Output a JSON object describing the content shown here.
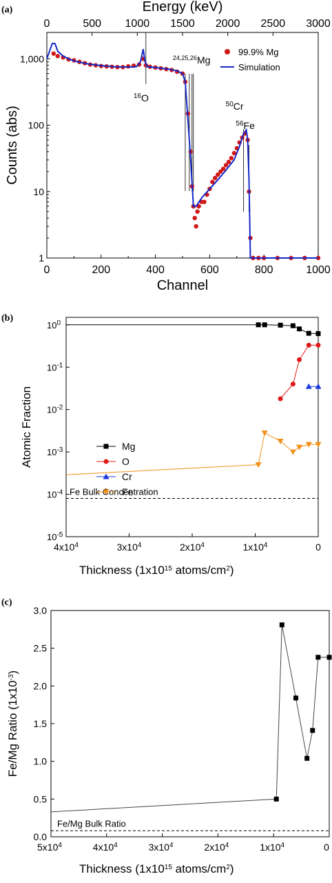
{
  "panels": {
    "a": "(a)",
    "b": "(b)",
    "c": "(c)"
  },
  "chart_data": [
    {
      "type": "scatter",
      "panel_label": "(a)",
      "xlabel": "Channel",
      "x2label": "Energy (keV)",
      "ylabel": "Counts (abs)",
      "xlim": [
        0,
        1000
      ],
      "x2lim": [
        0,
        3000
      ],
      "ylim": [
        1,
        2500
      ],
      "yscale": "log",
      "xticks": [
        0,
        200,
        400,
        600,
        800,
        1000
      ],
      "x2ticks": [
        0,
        500,
        1000,
        1500,
        2000,
        2500,
        3000
      ],
      "yticks": [
        1,
        10,
        100,
        1000
      ],
      "yticklabels": [
        "1",
        "10",
        "100",
        "1,000"
      ],
      "legend_position": "top-right",
      "series": [
        {
          "name": "99.9% Mg",
          "kind": "markers",
          "color": "#d01818",
          "x": [
            25,
            40,
            60,
            80,
            100,
            120,
            140,
            160,
            180,
            200,
            220,
            240,
            260,
            280,
            300,
            320,
            340,
            355,
            365,
            380,
            400,
            420,
            440,
            460,
            480,
            500,
            510,
            520,
            530,
            535,
            540,
            545,
            550,
            555,
            560,
            570,
            580,
            590,
            600,
            610,
            620,
            630,
            640,
            650,
            660,
            670,
            680,
            690,
            700,
            710,
            720,
            730,
            740,
            745,
            750,
            760,
            780,
            800,
            850,
            900,
            950,
            1000
          ],
          "y": [
            1200,
            1100,
            1050,
            980,
            950,
            900,
            860,
            820,
            800,
            780,
            770,
            760,
            750,
            750,
            770,
            790,
            820,
            1000,
            800,
            760,
            740,
            720,
            700,
            680,
            640,
            600,
            450,
            150,
            40,
            12,
            6,
            4,
            3,
            5,
            6,
            7,
            7,
            9,
            11,
            14,
            16,
            18,
            20,
            22,
            25,
            28,
            32,
            38,
            45,
            55,
            65,
            75,
            60,
            10,
            2,
            1,
            1,
            1,
            1,
            1,
            1,
            1
          ]
        },
        {
          "name": "Simulation",
          "kind": "line",
          "color": "#1428c8",
          "x": [
            0,
            10,
            20,
            30,
            40,
            60,
            80,
            100,
            150,
            200,
            250,
            300,
            330,
            345,
            355,
            362,
            370,
            400,
            450,
            480,
            500,
            510,
            520,
            530,
            540,
            550,
            570,
            600,
            630,
            660,
            690,
            710,
            725,
            735,
            740,
            745,
            750,
            760,
            800,
            1000
          ],
          "y": [
            1000,
            1300,
            1700,
            1700,
            1300,
            1100,
            1000,
            930,
            840,
            790,
            760,
            750,
            760,
            900,
            1400,
            900,
            760,
            740,
            700,
            660,
            600,
            450,
            120,
            30,
            6,
            6,
            8,
            11,
            15,
            21,
            30,
            48,
            75,
            85,
            60,
            15,
            1,
            1,
            1,
            1
          ]
        }
      ],
      "annotations": [
        {
          "text": "16",
          "sup": true,
          "x": 360
        },
        {
          "text": "O",
          "x": 360
        },
        {
          "text": "24,25,26",
          "sup": true
        },
        {
          "text": "Mg"
        },
        {
          "text": "50",
          "sup": true
        },
        {
          "text": "Cr"
        },
        {
          "text": "56",
          "sup": true
        },
        {
          "text": "Fe"
        }
      ],
      "marker_lines_x": [
        365,
        510,
        525,
        535,
        540,
        725,
        745
      ]
    },
    {
      "type": "line",
      "panel_label": "(b)",
      "xlabel": "Thickness (1x10",
      "xlabel_sup": "15",
      "xlabel_tail": " atoms/cm",
      "xlabel_sup2": "2",
      "xlabel_close": ")",
      "ylabel": "Atomic Fraction",
      "xlim": [
        40000,
        0
      ],
      "ylim": [
        1e-05,
        1.5
      ],
      "yscale": "log",
      "xtick_labels": [
        "4x10",
        "3x10",
        "2x10",
        "1x10",
        "0"
      ],
      "xtick_values": [
        40000,
        30000,
        20000,
        10000,
        0
      ],
      "xtick_sup": "4",
      "ytick_mantissa": "10",
      "ytick_exponents": [
        "0",
        "-1",
        "-2",
        "-3",
        "-4",
        "-5"
      ],
      "legend_position": "left-center",
      "reference_line": {
        "label": "Fe Bulk Concentration",
        "y": 8e-05
      },
      "series": [
        {
          "name": "Mg",
          "color": "#000000",
          "marker": "square",
          "x": [
            40000,
            9500,
            8500,
            6000,
            4000,
            3000,
            1500,
            0
          ],
          "y": [
            1.0,
            1.0,
            1.0,
            0.98,
            0.95,
            0.8,
            0.63,
            0.62
          ]
        },
        {
          "name": "O",
          "color": "#e01818",
          "marker": "circle",
          "x": [
            6000,
            4000,
            3000,
            1500,
            0
          ],
          "y": [
            0.018,
            0.04,
            0.15,
            0.33,
            0.33
          ]
        },
        {
          "name": "Cr",
          "color": "#1838e0",
          "marker": "triangle-up",
          "x": [
            1500,
            0
          ],
          "y": [
            0.035,
            0.035
          ]
        },
        {
          "name": "Fe",
          "color": "#f09018",
          "marker": "triangle-down",
          "x": [
            40000,
            9500,
            8500,
            6000,
            4000,
            3000,
            1500,
            0
          ],
          "y": [
            0.00029,
            0.0005,
            0.0028,
            0.0018,
            0.001,
            0.0013,
            0.0015,
            0.0015
          ]
        }
      ]
    },
    {
      "type": "line",
      "panel_label": "(c)",
      "xlabel": "Thickness (1x10",
      "xlabel_sup": "15",
      "xlabel_tail": " atoms/cm",
      "xlabel_sup2": "2",
      "xlabel_close": ")",
      "ylabel": "Fe/Mg Ratio (1x10",
      "ylabel_sup": "-3",
      "ylabel_close": ")",
      "xlim": [
        50000,
        0
      ],
      "ylim": [
        0,
        3.0
      ],
      "xtick_labels": [
        "5x10",
        "4x10",
        "3x10",
        "2x10",
        "1x10",
        "0"
      ],
      "xtick_values": [
        50000,
        40000,
        30000,
        20000,
        10000,
        0
      ],
      "xtick_sup": "4",
      "ytick_labels": [
        "0.0",
        "0.5",
        "1.0",
        "1.5",
        "2.0",
        "2.5",
        "3.0"
      ],
      "ytick_values": [
        0,
        0.5,
        1.0,
        1.5,
        2.0,
        2.5,
        3.0
      ],
      "reference_line": {
        "label": "Fe/Mg Bulk Ratio",
        "y": 0.08
      },
      "series": [
        {
          "name": "",
          "color": "#000000",
          "marker": "square",
          "x": [
            50000,
            9500,
            8500,
            6000,
            4000,
            3000,
            2000,
            0
          ],
          "y": [
            0.33,
            0.5,
            2.81,
            1.84,
            1.04,
            1.41,
            2.38,
            2.38
          ]
        }
      ]
    }
  ]
}
